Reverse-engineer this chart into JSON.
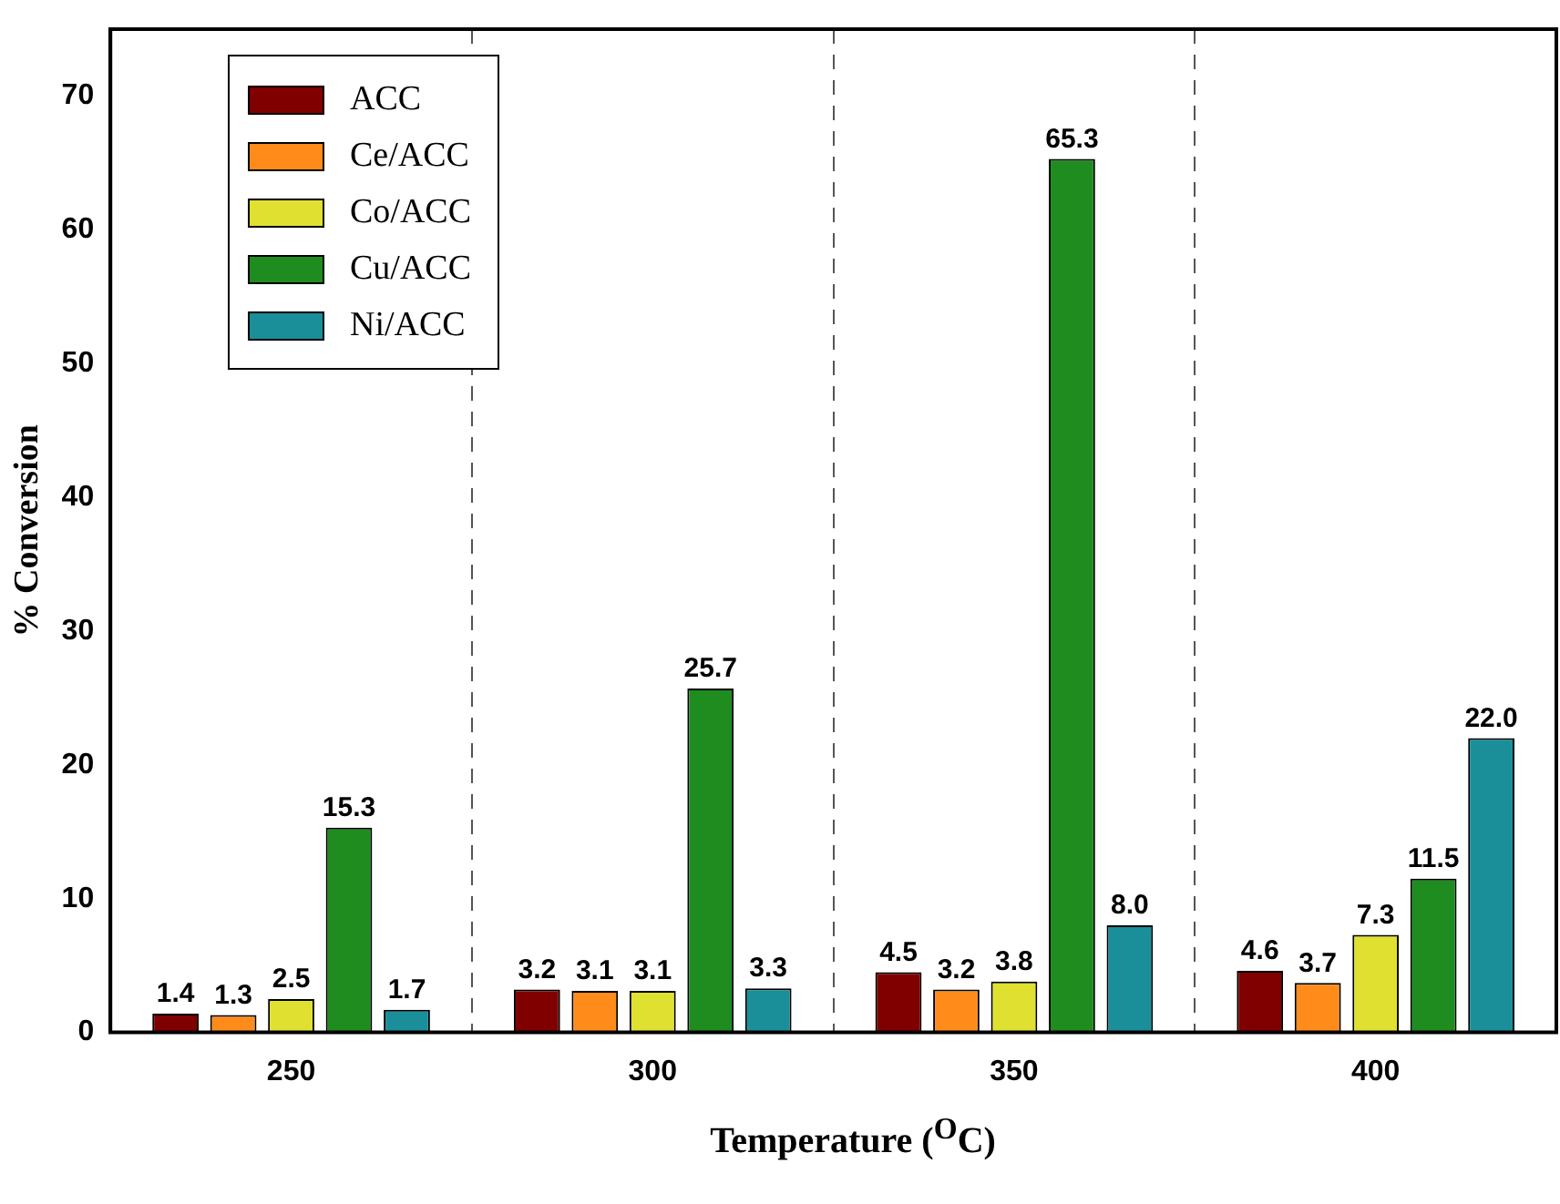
{
  "chart_data": {
    "type": "bar",
    "xlabel": "Temperature ($^{O}$C)",
    "ylabel": "% Conversion",
    "categories": [
      "250",
      "300",
      "350",
      "400"
    ],
    "series": [
      {
        "name": "ACC",
        "color": "#800000",
        "values": [
          1.4,
          3.2,
          4.5,
          4.6
        ],
        "value_labels": [
          "1.4",
          "3.2",
          "4.5",
          "4.6"
        ]
      },
      {
        "name": "Ce/ACC",
        "color": "#ff8c1a",
        "values": [
          1.3,
          3.1,
          3.2,
          3.7
        ],
        "value_labels": [
          "1.3",
          "3.1",
          "3.2",
          "3.7"
        ]
      },
      {
        "name": "Co/ACC",
        "color": "#e0e030",
        "values": [
          2.5,
          3.1,
          3.8,
          7.3
        ],
        "value_labels": [
          "2.5",
          "3.1",
          "3.8",
          "7.3"
        ]
      },
      {
        "name": "Cu/ACC",
        "color": "#1f8c1f",
        "values": [
          15.3,
          25.7,
          65.3,
          11.5
        ],
        "value_labels": [
          "15.3",
          "25.7",
          "65.3",
          "11.5"
        ]
      },
      {
        "name": "Ni/ACC",
        "color": "#1a8f9a",
        "values": [
          1.7,
          3.3,
          8.0,
          22.0
        ],
        "value_labels": [
          "1.7",
          "3.3",
          "8.0",
          "22.0"
        ]
      }
    ],
    "ylim": [
      0,
      75
    ],
    "yticks": [
      0,
      10,
      20,
      30,
      40,
      50,
      60,
      70
    ],
    "grid": "x",
    "legend": "top left"
  }
}
